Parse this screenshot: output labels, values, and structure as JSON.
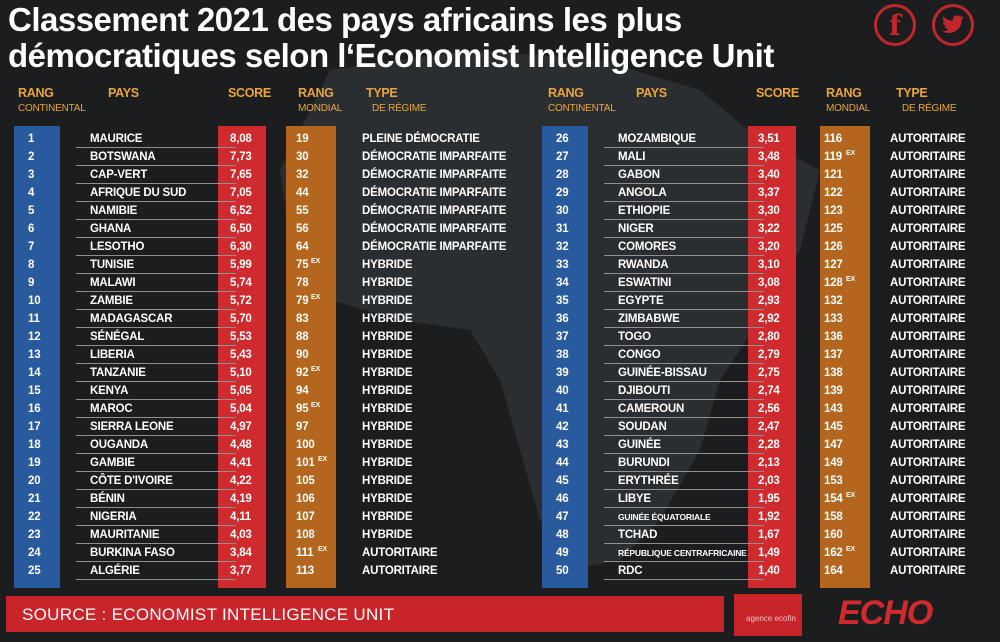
{
  "title_line1": "Classement 2021 des pays africains les plus",
  "title_line2": "démocratiques selon l‘Economist Intelligence Unit",
  "social": {
    "facebook_icon": "f",
    "twitter_icon": "🐦"
  },
  "headers": {
    "rang": "RANG",
    "continental": "CONTINENTAL",
    "pays": "PAYS",
    "score": "SCORE",
    "rang2": "RANG",
    "mondial": "MONDIAL",
    "type": "TYPE",
    "regime": "DE RÉGIME"
  },
  "colors": {
    "accent_orange": "#e8a53c",
    "blue": "#2a5a9e",
    "red": "#cf2a2e",
    "brown": "#b5661e"
  },
  "left_rows": [
    {
      "rank": "1",
      "country": "MAURICE",
      "score": "8,08",
      "world": "19",
      "ex": "",
      "type": "PLEINE DÉMOCRATIE"
    },
    {
      "rank": "2",
      "country": "BOTSWANA",
      "score": "7,73",
      "world": "30",
      "ex": "",
      "type": "DÉMOCRATIE IMPARFAITE"
    },
    {
      "rank": "3",
      "country": "CAP-VERT",
      "score": "7,65",
      "world": "32",
      "ex": "",
      "type": "DÉMOCRATIE IMPARFAITE"
    },
    {
      "rank": "4",
      "country": "AFRIQUE DU SUD",
      "score": "7,05",
      "world": "44",
      "ex": "",
      "type": "DÉMOCRATIE IMPARFAITE"
    },
    {
      "rank": "5",
      "country": "NAMIBIE",
      "score": "6,52",
      "world": "55",
      "ex": "",
      "type": "DÉMOCRATIE IMPARFAITE"
    },
    {
      "rank": "6",
      "country": "GHANA",
      "score": "6,50",
      "world": "56",
      "ex": "",
      "type": "DÉMOCRATIE IMPARFAITE"
    },
    {
      "rank": "7",
      "country": "LESOTHO",
      "score": "6,30",
      "world": "64",
      "ex": "",
      "type": "DÉMOCRATIE IMPARFAITE"
    },
    {
      "rank": "8",
      "country": "TUNISIE",
      "score": "5,99",
      "world": "75",
      "ex": "EX",
      "type": "HYBRIDE"
    },
    {
      "rank": "9",
      "country": "MALAWI",
      "score": "5,74",
      "world": "78",
      "ex": "",
      "type": "HYBRIDE"
    },
    {
      "rank": "10",
      "country": "ZAMBIE",
      "score": "5,72",
      "world": "79",
      "ex": "EX",
      "type": "HYBRIDE"
    },
    {
      "rank": "11",
      "country": "MADAGASCAR",
      "score": "5,70",
      "world": "83",
      "ex": "",
      "type": "HYBRIDE"
    },
    {
      "rank": "12",
      "country": "SÉNÉGAL",
      "score": "5,53",
      "world": "88",
      "ex": "",
      "type": "HYBRIDE"
    },
    {
      "rank": "13",
      "country": "LIBERIA",
      "score": "5,43",
      "world": "90",
      "ex": "",
      "type": "HYBRIDE"
    },
    {
      "rank": "14",
      "country": "TANZANIE",
      "score": "5,10",
      "world": "92",
      "ex": "EX",
      "type": "HYBRIDE"
    },
    {
      "rank": "15",
      "country": "KENYA",
      "score": "5,05",
      "world": "94",
      "ex": "",
      "type": "HYBRIDE"
    },
    {
      "rank": "16",
      "country": "MAROC",
      "score": "5,04",
      "world": "95",
      "ex": "EX",
      "type": "HYBRIDE"
    },
    {
      "rank": "17",
      "country": "SIERRA LEONE",
      "score": "4,97",
      "world": "97",
      "ex": "",
      "type": "HYBRIDE"
    },
    {
      "rank": "18",
      "country": "OUGANDA",
      "score": "4,48",
      "world": "100",
      "ex": "",
      "type": "HYBRIDE"
    },
    {
      "rank": "19",
      "country": "GAMBIE",
      "score": "4,41",
      "world": "101",
      "ex": "EX",
      "type": "HYBRIDE"
    },
    {
      "rank": "20",
      "country": "CÔTE D'IVOIRE",
      "score": "4,22",
      "world": "105",
      "ex": "",
      "type": "HYBRIDE"
    },
    {
      "rank": "21",
      "country": "BÉNIN",
      "score": "4,19",
      "world": "106",
      "ex": "",
      "type": "HYBRIDE"
    },
    {
      "rank": "22",
      "country": "NIGERIA",
      "score": "4,11",
      "world": "107",
      "ex": "",
      "type": "HYBRIDE"
    },
    {
      "rank": "23",
      "country": "MAURITANIE",
      "score": "4,03",
      "world": "108",
      "ex": "",
      "type": "HYBRIDE"
    },
    {
      "rank": "24",
      "country": "BURKINA FASO",
      "score": "3,84",
      "world": "111",
      "ex": "EX",
      "type": "AUTORITAIRE"
    },
    {
      "rank": "25",
      "country": "ALGÉRIE",
      "score": "3,77",
      "world": "113",
      "ex": "",
      "type": "AUTORITAIRE"
    }
  ],
  "right_rows": [
    {
      "rank": "26",
      "country": "MOZAMBIQUE",
      "score": "3,51",
      "world": "116",
      "ex": "",
      "type": "AUTORITAIRE"
    },
    {
      "rank": "27",
      "country": "MALI",
      "score": "3,48",
      "world": "119",
      "ex": "EX",
      "type": "AUTORITAIRE"
    },
    {
      "rank": "28",
      "country": "GABON",
      "score": "3,40",
      "world": "121",
      "ex": "",
      "type": "AUTORITAIRE"
    },
    {
      "rank": "29",
      "country": "ANGOLA",
      "score": "3,37",
      "world": "122",
      "ex": "",
      "type": "AUTORITAIRE"
    },
    {
      "rank": "30",
      "country": "ETHIOPIE",
      "score": "3,30",
      "world": "123",
      "ex": "",
      "type": "AUTORITAIRE"
    },
    {
      "rank": "31",
      "country": "NIGER",
      "score": "3,22",
      "world": "125",
      "ex": "",
      "type": "AUTORITAIRE"
    },
    {
      "rank": "32",
      "country": "COMORES",
      "score": "3,20",
      "world": "126",
      "ex": "",
      "type": "AUTORITAIRE"
    },
    {
      "rank": "33",
      "country": "RWANDA",
      "score": "3,10",
      "world": "127",
      "ex": "",
      "type": "AUTORITAIRE"
    },
    {
      "rank": "34",
      "country": "ESWATINI",
      "score": "3,08",
      "world": "128",
      "ex": "EX",
      "type": "AUTORITAIRE"
    },
    {
      "rank": "35",
      "country": "EGYPTE",
      "score": "2,93",
      "world": "132",
      "ex": "",
      "type": "AUTORITAIRE"
    },
    {
      "rank": "36",
      "country": "ZIMBABWE",
      "score": "2,92",
      "world": "133",
      "ex": "",
      "type": "AUTORITAIRE"
    },
    {
      "rank": "37",
      "country": "TOGO",
      "score": "2,80",
      "world": "136",
      "ex": "",
      "type": "AUTORITAIRE"
    },
    {
      "rank": "38",
      "country": "CONGO",
      "score": "2,79",
      "world": "137",
      "ex": "",
      "type": "AUTORITAIRE"
    },
    {
      "rank": "39",
      "country": "GUINÉE-BISSAU",
      "score": "2,75",
      "world": "138",
      "ex": "",
      "type": "AUTORITAIRE"
    },
    {
      "rank": "40",
      "country": "DJIBOUTI",
      "score": "2,74",
      "world": "139",
      "ex": "",
      "type": "AUTORITAIRE"
    },
    {
      "rank": "41",
      "country": "CAMEROUN",
      "score": "2,56",
      "world": "143",
      "ex": "",
      "type": "AUTORITAIRE"
    },
    {
      "rank": "42",
      "country": "SOUDAN",
      "score": "2,47",
      "world": "145",
      "ex": "",
      "type": "AUTORITAIRE"
    },
    {
      "rank": "43",
      "country": "GUINÉE",
      "score": "2,28",
      "world": "147",
      "ex": "",
      "type": "AUTORITAIRE"
    },
    {
      "rank": "44",
      "country": "BURUNDI",
      "score": "2,13",
      "world": "149",
      "ex": "",
      "type": "AUTORITAIRE"
    },
    {
      "rank": "45",
      "country": "ERYTHRÉE",
      "score": "2,03",
      "world": "153",
      "ex": "",
      "type": "AUTORITAIRE"
    },
    {
      "rank": "46",
      "country": "LIBYE",
      "score": "1,95",
      "world": "154",
      "ex": "EX",
      "type": "AUTORITAIRE"
    },
    {
      "rank": "47",
      "country": "GUINÉE ÉQUATORIALE",
      "score": "1,92",
      "world": "158",
      "ex": "",
      "type": "AUTORITAIRE"
    },
    {
      "rank": "48",
      "country": "TCHAD",
      "score": "1,67",
      "world": "160",
      "ex": "",
      "type": "AUTORITAIRE"
    },
    {
      "rank": "49",
      "country": "RÉPUBLIQUE CENTRAFRICAINE",
      "score": "1,49",
      "world": "162",
      "ex": "EX",
      "type": "AUTORITAIRE"
    },
    {
      "rank": "50",
      "country": "RDC",
      "score": "1,40",
      "world": "164",
      "ex": "",
      "type": "AUTORITAIRE"
    }
  ],
  "footer": {
    "source": "SOURCE : ECONOMIST INTELLIGENCE UNIT",
    "agency": "agence ecofin",
    "brand": "ECHO"
  }
}
